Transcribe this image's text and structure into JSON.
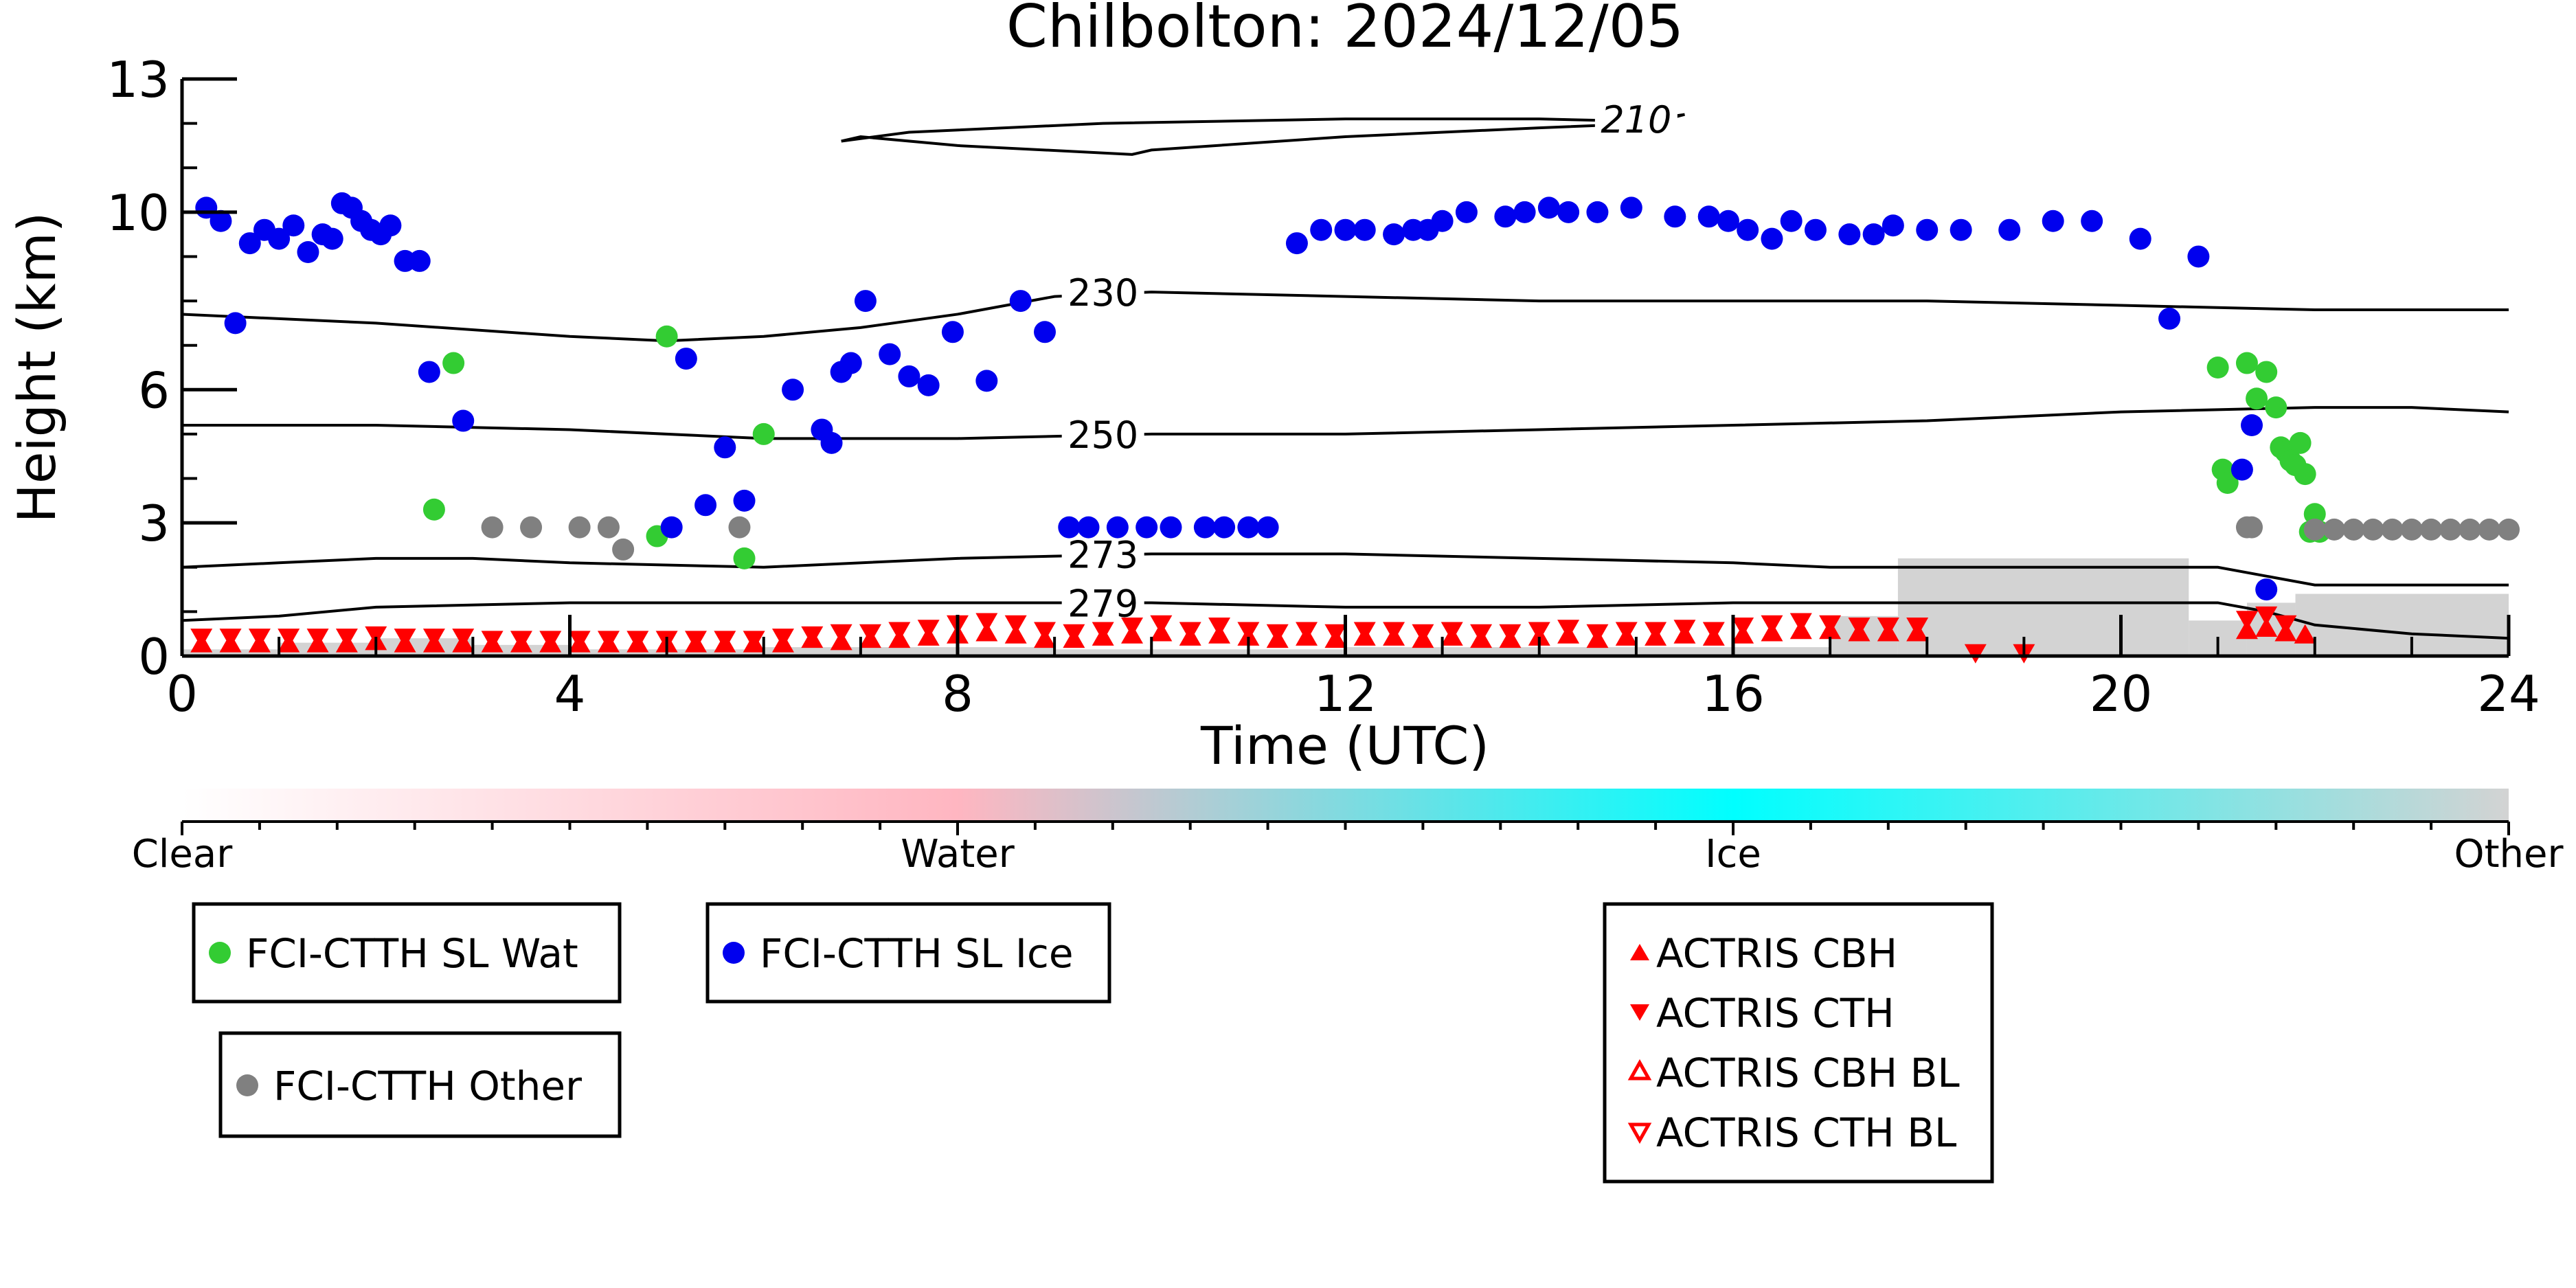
{
  "title": "Chilbolton: 2024/12/05",
  "colors": {
    "wat": "#33cc33",
    "ice": "#0000ee",
    "other": "#808080",
    "actris": "#ff0000",
    "mask": "#d3d3d3",
    "clear": "#ffffff",
    "water": "#ffb6c1",
    "icebar": "#00ffff",
    "otherbar": "#d3d3d3"
  },
  "colorbar": {
    "labels": [
      "Clear",
      "Water",
      "Ice",
      "Other"
    ]
  },
  "legend_left": [
    {
      "label": "FCI-CTTH SL Wat",
      "marker": "circle",
      "color": "#33cc33"
    },
    {
      "label": "FCI-CTTH SL Ice",
      "marker": "circle",
      "color": "#0000ee"
    },
    {
      "label": "FCI-CTTH Other",
      "marker": "circle",
      "color": "#808080"
    }
  ],
  "legend_right": [
    {
      "label": "ACTRIS CBH",
      "marker": "triangle-up-filled"
    },
    {
      "label": "ACTRIS CTH",
      "marker": "triangle-down-filled"
    },
    {
      "label": "ACTRIS CBH BL",
      "marker": "triangle-up-open"
    },
    {
      "label": "ACTRIS CTH BL",
      "marker": "triangle-down-open"
    }
  ],
  "chart_data": {
    "type": "scatter",
    "title": "Chilbolton: 2024/12/05",
    "xlabel": "Time (UTC)",
    "ylabel": "Height (km)",
    "xlim": [
      0,
      24
    ],
    "ylim": [
      0,
      13
    ],
    "xticks": [
      0,
      4,
      8,
      12,
      16,
      20,
      24
    ],
    "yticks": [
      0,
      3,
      6,
      10,
      13
    ],
    "series": [
      {
        "name": "FCI-CTTH SL Wat",
        "marker": "circle",
        "color": "#33cc33",
        "x": [
          2.6,
          2.8,
          5.0,
          4.9,
          6.0,
          5.8,
          21.0,
          21.05,
          21.1,
          21.3,
          21.4,
          21.5,
          21.6,
          21.65,
          21.7,
          21.75,
          21.8,
          21.85,
          21.9,
          21.95,
          22.0,
          22.05
        ],
        "y": [
          3.3,
          6.6,
          7.2,
          2.7,
          5.0,
          2.2,
          6.5,
          4.2,
          3.9,
          6.6,
          5.8,
          6.4,
          5.6,
          4.7,
          4.6,
          4.4,
          4.3,
          4.8,
          4.1,
          2.8,
          3.2,
          2.8
        ]
      },
      {
        "name": "FCI-CTTH SL Ice",
        "marker": "circle",
        "color": "#0000ee",
        "x": [
          0.25,
          0.4,
          0.55,
          0.7,
          0.85,
          1.0,
          1.15,
          1.3,
          1.45,
          1.55,
          1.65,
          1.75,
          1.85,
          1.95,
          2.05,
          2.15,
          2.3,
          2.45,
          2.55,
          2.9,
          5.05,
          5.2,
          5.4,
          5.6,
          5.8,
          6.3,
          6.6,
          6.7,
          6.8,
          6.9,
          7.05,
          7.3,
          7.5,
          7.7,
          7.95,
          8.3,
          8.65,
          8.9,
          9.15,
          9.35,
          9.65,
          9.95,
          10.2,
          10.55,
          10.75,
          11.0,
          11.2,
          11.5,
          11.75,
          12.0,
          12.2,
          12.5,
          12.7,
          12.85,
          13.0,
          13.25,
          13.65,
          13.85,
          14.1,
          14.3,
          14.6,
          14.95,
          15.4,
          15.75,
          15.95,
          16.15,
          16.4,
          16.6,
          16.85,
          17.2,
          17.45,
          17.65,
          18.0,
          18.35,
          18.85,
          19.3,
          19.7,
          20.2,
          20.5,
          20.8,
          21.25,
          21.35,
          21.5
        ],
        "y": [
          10.1,
          9.8,
          7.5,
          9.3,
          9.6,
          9.4,
          9.7,
          9.1,
          9.5,
          9.4,
          10.2,
          10.1,
          9.8,
          9.6,
          9.5,
          9.7,
          8.9,
          8.9,
          6.4,
          5.3,
          2.9,
          6.7,
          3.4,
          4.7,
          3.5,
          6.0,
          5.1,
          4.8,
          6.4,
          6.6,
          8.0,
          6.8,
          6.3,
          6.1,
          7.3,
          6.2,
          8.0,
          7.3,
          2.9,
          2.9,
          2.9,
          2.9,
          2.9,
          2.9,
          2.9,
          2.9,
          2.9,
          9.3,
          9.6,
          9.6,
          9.6,
          9.5,
          9.6,
          9.6,
          9.8,
          10.0,
          9.9,
          10.0,
          10.1,
          10.0,
          10.0,
          10.1,
          9.9,
          9.9,
          9.8,
          9.6,
          9.4,
          9.8,
          9.6,
          9.5,
          9.5,
          9.7,
          9.6,
          9.6,
          9.6,
          9.8,
          9.8,
          9.4,
          7.6,
          9.0,
          4.2,
          5.2,
          1.5
        ]
      },
      {
        "name": "FCI-CTTH Other",
        "marker": "circle",
        "color": "#808080",
        "x": [
          3.2,
          3.6,
          4.1,
          4.4,
          4.55,
          5.75,
          21.3,
          21.35,
          22.0,
          22.2,
          22.4,
          22.6,
          22.8,
          23.0,
          23.2,
          23.4,
          23.6,
          23.8,
          24.0
        ],
        "y": [
          2.9,
          2.9,
          2.9,
          2.9,
          2.4,
          2.9,
          2.9,
          2.9,
          2.85,
          2.85,
          2.85,
          2.85,
          2.85,
          2.85,
          2.85,
          2.85,
          2.85,
          2.85,
          2.85
        ]
      },
      {
        "name": "ACTRIS CBH",
        "marker": "triangle-up-filled",
        "color": "#ff0000",
        "x": [
          0.2,
          0.5,
          0.8,
          1.1,
          1.4,
          1.7,
          2.0,
          2.3,
          2.6,
          2.9,
          3.2,
          3.5,
          3.8,
          4.1,
          4.4,
          4.7,
          5.0,
          5.3,
          5.6,
          5.9,
          6.2,
          6.5,
          6.8,
          7.1,
          7.4,
          7.7,
          8.0,
          8.3,
          8.6,
          8.9,
          9.2,
          9.5,
          9.8,
          10.1,
          10.4,
          10.7,
          11.0,
          11.3,
          11.6,
          11.9,
          12.2,
          12.5,
          12.8,
          13.1,
          13.4,
          13.7,
          14.0,
          14.3,
          14.6,
          14.9,
          15.2,
          15.5,
          15.8,
          16.1,
          16.4,
          16.7,
          17.0,
          17.3,
          17.6,
          17.9,
          21.3,
          21.5,
          21.7,
          21.9
        ],
        "y": [
          0.3,
          0.3,
          0.3,
          0.3,
          0.3,
          0.3,
          0.35,
          0.3,
          0.3,
          0.3,
          0.3,
          0.3,
          0.3,
          0.3,
          0.3,
          0.3,
          0.3,
          0.3,
          0.3,
          0.3,
          0.3,
          0.4,
          0.35,
          0.4,
          0.4,
          0.45,
          0.5,
          0.55,
          0.5,
          0.4,
          0.4,
          0.45,
          0.5,
          0.55,
          0.45,
          0.5,
          0.45,
          0.4,
          0.45,
          0.4,
          0.45,
          0.45,
          0.4,
          0.45,
          0.4,
          0.4,
          0.45,
          0.5,
          0.4,
          0.45,
          0.45,
          0.5,
          0.45,
          0.5,
          0.55,
          0.6,
          0.6,
          0.55,
          0.55,
          0.55,
          0.6,
          0.65,
          0.55,
          0.5
        ]
      },
      {
        "name": "ACTRIS CTH",
        "marker": "triangle-down-filled",
        "color": "#ff0000",
        "x": [
          0.2,
          0.5,
          0.8,
          1.1,
          1.4,
          1.7,
          2.0,
          2.3,
          2.6,
          2.9,
          3.2,
          3.5,
          3.8,
          4.1,
          4.4,
          4.7,
          5.0,
          5.3,
          5.6,
          5.9,
          6.2,
          6.5,
          6.8,
          7.1,
          7.4,
          7.7,
          8.0,
          8.3,
          8.6,
          8.9,
          9.2,
          9.5,
          9.8,
          10.1,
          10.4,
          10.7,
          11.0,
          11.3,
          11.6,
          11.9,
          12.2,
          12.5,
          12.8,
          13.1,
          13.4,
          13.7,
          14.0,
          14.3,
          14.6,
          14.9,
          15.2,
          15.5,
          15.8,
          16.1,
          16.4,
          16.7,
          17.0,
          17.3,
          17.6,
          17.9,
          18.5,
          19.0,
          21.3,
          21.5,
          21.7
        ],
        "y": [
          0.4,
          0.4,
          0.4,
          0.4,
          0.4,
          0.4,
          0.45,
          0.4,
          0.4,
          0.4,
          0.35,
          0.35,
          0.35,
          0.35,
          0.35,
          0.35,
          0.35,
          0.35,
          0.35,
          0.35,
          0.4,
          0.45,
          0.5,
          0.5,
          0.55,
          0.6,
          0.7,
          0.75,
          0.7,
          0.55,
          0.5,
          0.55,
          0.65,
          0.7,
          0.55,
          0.65,
          0.55,
          0.5,
          0.55,
          0.5,
          0.55,
          0.55,
          0.5,
          0.55,
          0.5,
          0.5,
          0.55,
          0.6,
          0.5,
          0.55,
          0.55,
          0.6,
          0.55,
          0.65,
          0.7,
          0.75,
          0.7,
          0.65,
          0.65,
          0.65,
          0.05,
          0.05,
          0.8,
          0.9,
          0.7
        ]
      }
    ],
    "contours": [
      {
        "label": "210",
        "x": [
          6.8,
          7.5,
          9.5,
          12.0,
          14.0,
          15.0,
          15.5,
          15.15,
          14.0,
          12.0,
          10.0,
          9.8,
          8.0,
          7.0,
          6.8
        ],
        "y": [
          11.6,
          11.8,
          12.0,
          12.1,
          12.1,
          12.05,
          12.2,
          12.0,
          11.9,
          11.7,
          11.4,
          11.3,
          11.5,
          11.7,
          11.6
        ]
      },
      {
        "label": "230",
        "x": [
          0,
          2,
          4,
          5,
          6,
          7,
          8,
          9,
          10,
          12,
          14,
          16,
          18,
          20,
          22,
          24
        ],
        "y": [
          7.7,
          7.5,
          7.2,
          7.1,
          7.2,
          7.4,
          7.7,
          8.1,
          8.2,
          8.1,
          8.0,
          8.0,
          8.0,
          7.9,
          7.8,
          7.8
        ]
      },
      {
        "label": "250",
        "x": [
          0,
          2,
          4,
          6,
          8,
          10,
          12,
          14,
          16,
          18,
          20,
          22,
          23,
          24
        ],
        "y": [
          5.2,
          5.2,
          5.1,
          4.9,
          4.9,
          5.0,
          5.0,
          5.1,
          5.2,
          5.3,
          5.5,
          5.6,
          5.6,
          5.5
        ]
      },
      {
        "label": "273",
        "x": [
          0,
          1,
          2,
          3,
          4,
          6,
          8,
          10,
          12,
          14,
          16,
          17,
          18,
          20,
          21,
          21.5,
          22,
          24
        ],
        "y": [
          2.0,
          2.1,
          2.2,
          2.2,
          2.1,
          2.0,
          2.2,
          2.3,
          2.3,
          2.2,
          2.1,
          2.0,
          2.0,
          2.0,
          2.0,
          1.8,
          1.6,
          1.6
        ]
      },
      {
        "label": "279",
        "x": [
          0,
          1,
          2,
          4,
          6,
          8,
          10,
          12,
          14,
          16,
          18,
          20,
          21,
          21.5,
          22,
          23,
          24
        ],
        "y": [
          0.8,
          0.9,
          1.1,
          1.2,
          1.2,
          1.2,
          1.2,
          1.1,
          1.1,
          1.2,
          1.2,
          1.2,
          1.2,
          1.0,
          0.7,
          0.5,
          0.4
        ]
      }
    ],
    "other_mask": [
      {
        "x0": 0,
        "x1": 1,
        "top": 0.15
      },
      {
        "x0": 1,
        "x1": 2,
        "top": 0.3
      },
      {
        "x0": 2,
        "x1": 3,
        "top": 0.4
      },
      {
        "x0": 3,
        "x1": 4,
        "top": 0.25
      },
      {
        "x0": 4,
        "x1": 6,
        "top": 0.15
      },
      {
        "x0": 6,
        "x1": 9,
        "top": 0.2
      },
      {
        "x0": 9,
        "x1": 12,
        "top": 0.15
      },
      {
        "x0": 12,
        "x1": 17,
        "top": 0.2
      },
      {
        "x0": 17,
        "x1": 17.7,
        "top": 0.9
      },
      {
        "x0": 17.7,
        "x1": 20.7,
        "top": 2.2
      },
      {
        "x0": 20.7,
        "x1": 21.3,
        "top": 0.8
      },
      {
        "x0": 21.3,
        "x1": 21.8,
        "top": 1.2
      },
      {
        "x0": 21.8,
        "x1": 24,
        "top": 1.4
      }
    ]
  }
}
